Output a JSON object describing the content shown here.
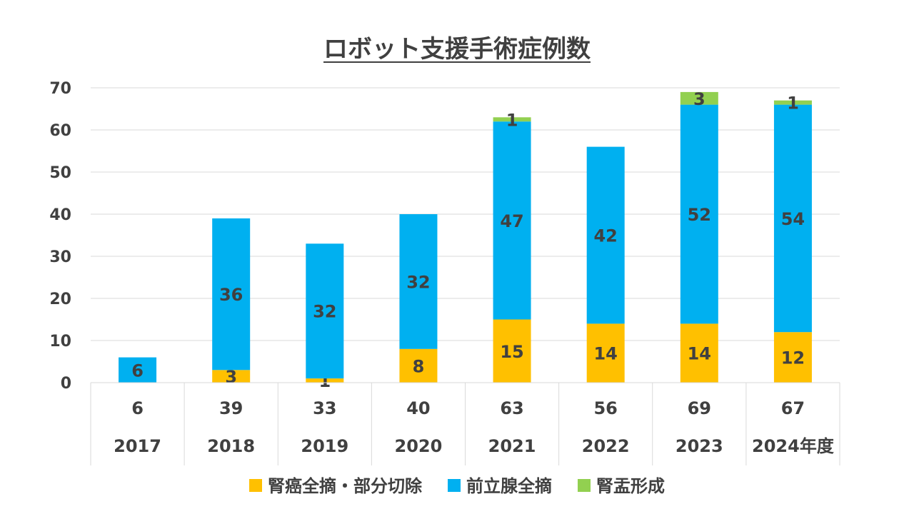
{
  "chart_data": {
    "type": "bar",
    "stacked": true,
    "title": "ロボット支援手術症例数",
    "categories": [
      "2017",
      "2018",
      "2019",
      "2020",
      "2021",
      "2022",
      "2023",
      "2024年度"
    ],
    "totals": [
      6,
      39,
      33,
      40,
      63,
      56,
      69,
      67
    ],
    "series": [
      {
        "name": "腎癌全摘・部分切除",
        "color": "#FFC000",
        "values": [
          0,
          3,
          1,
          8,
          15,
          14,
          14,
          12
        ]
      },
      {
        "name": "前立腺全摘",
        "color": "#00B0F0",
        "values": [
          6,
          36,
          32,
          32,
          47,
          42,
          52,
          54
        ]
      },
      {
        "name": "腎盂形成",
        "color": "#92D050",
        "values": [
          0,
          0,
          0,
          0,
          1,
          0,
          3,
          1
        ]
      }
    ],
    "ylim": [
      0,
      70
    ],
    "yticks": [
      0,
      10,
      20,
      30,
      40,
      50,
      60,
      70
    ],
    "grid": true,
    "legend": "bottom"
  }
}
